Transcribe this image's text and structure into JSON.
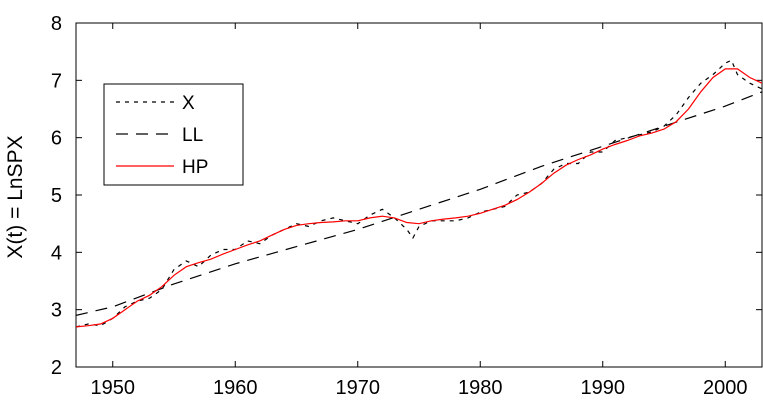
{
  "chart_data": {
    "type": "line",
    "title": "",
    "xlabel": "",
    "ylabel": "X(t) = LnSPX",
    "xlim": [
      1947,
      2003
    ],
    "ylim": [
      2,
      8
    ],
    "x_ticks": [
      1950,
      1960,
      1970,
      1980,
      1990,
      2000
    ],
    "y_ticks": [
      2,
      3,
      4,
      5,
      6,
      7,
      8
    ],
    "grid": false,
    "legend_position": "upper-left",
    "series": [
      {
        "name": "X",
        "color": "#000000",
        "style": "short-dash",
        "x": [
          1947,
          1948,
          1949,
          1950,
          1951,
          1952,
          1953,
          1954,
          1955,
          1956,
          1957,
          1958,
          1959,
          1960,
          1961,
          1962,
          1963,
          1964,
          1965,
          1966,
          1967,
          1968,
          1969,
          1970,
          1971,
          1972,
          1973,
          1974,
          1974.5,
          1975,
          1976,
          1977,
          1978,
          1979,
          1980,
          1981,
          1982,
          1983,
          1984,
          1985,
          1986,
          1987,
          1988,
          1989,
          1990,
          1991,
          1992,
          1993,
          1994,
          1995,
          1996,
          1997,
          1998,
          1999,
          2000,
          2000.5,
          2001,
          2002,
          2003
        ],
        "values": [
          2.7,
          2.75,
          2.72,
          2.85,
          3.05,
          3.15,
          3.2,
          3.35,
          3.7,
          3.85,
          3.75,
          3.95,
          4.05,
          4.05,
          4.2,
          4.15,
          4.3,
          4.4,
          4.5,
          4.45,
          4.55,
          4.6,
          4.55,
          4.5,
          4.65,
          4.75,
          4.6,
          4.4,
          4.25,
          4.45,
          4.55,
          4.55,
          4.55,
          4.6,
          4.7,
          4.75,
          4.8,
          5.0,
          5.05,
          5.2,
          5.45,
          5.55,
          5.55,
          5.75,
          5.75,
          5.95,
          6.0,
          6.05,
          6.1,
          6.2,
          6.4,
          6.7,
          6.95,
          7.1,
          7.3,
          7.35,
          7.1,
          6.95,
          6.85
        ]
      },
      {
        "name": "LL",
        "color": "#000000",
        "style": "long-dash",
        "x": [
          1947,
          1950,
          1955,
          1960,
          1965,
          1970,
          1975,
          1980,
          1985,
          1990,
          1995,
          2000,
          2003
        ],
        "values": [
          2.9,
          3.05,
          3.45,
          3.8,
          4.1,
          4.4,
          4.75,
          5.1,
          5.5,
          5.85,
          6.2,
          6.55,
          6.8
        ]
      },
      {
        "name": "HP",
        "color": "#ff0000",
        "style": "solid",
        "x": [
          1947,
          1948,
          1949,
          1950,
          1951,
          1952,
          1953,
          1954,
          1955,
          1956,
          1957,
          1958,
          1959,
          1960,
          1961,
          1962,
          1963,
          1964,
          1965,
          1966,
          1967,
          1968,
          1969,
          1970,
          1971,
          1972,
          1973,
          1974,
          1975,
          1976,
          1977,
          1978,
          1979,
          1980,
          1981,
          1982,
          1983,
          1984,
          1985,
          1986,
          1987,
          1988,
          1989,
          1990,
          1991,
          1992,
          1993,
          1994,
          1995,
          1996,
          1997,
          1998,
          1999,
          2000,
          2001,
          2002,
          2003
        ],
        "values": [
          2.7,
          2.72,
          2.75,
          2.85,
          3.0,
          3.15,
          3.25,
          3.4,
          3.6,
          3.75,
          3.82,
          3.88,
          3.97,
          4.05,
          4.13,
          4.2,
          4.3,
          4.4,
          4.47,
          4.5,
          4.52,
          4.53,
          4.55,
          4.55,
          4.6,
          4.63,
          4.6,
          4.52,
          4.5,
          4.55,
          4.58,
          4.6,
          4.63,
          4.68,
          4.75,
          4.82,
          4.92,
          5.05,
          5.2,
          5.38,
          5.52,
          5.62,
          5.7,
          5.8,
          5.88,
          5.95,
          6.03,
          6.08,
          6.15,
          6.28,
          6.5,
          6.8,
          7.05,
          7.2,
          7.2,
          7.05,
          6.95
        ]
      }
    ]
  }
}
